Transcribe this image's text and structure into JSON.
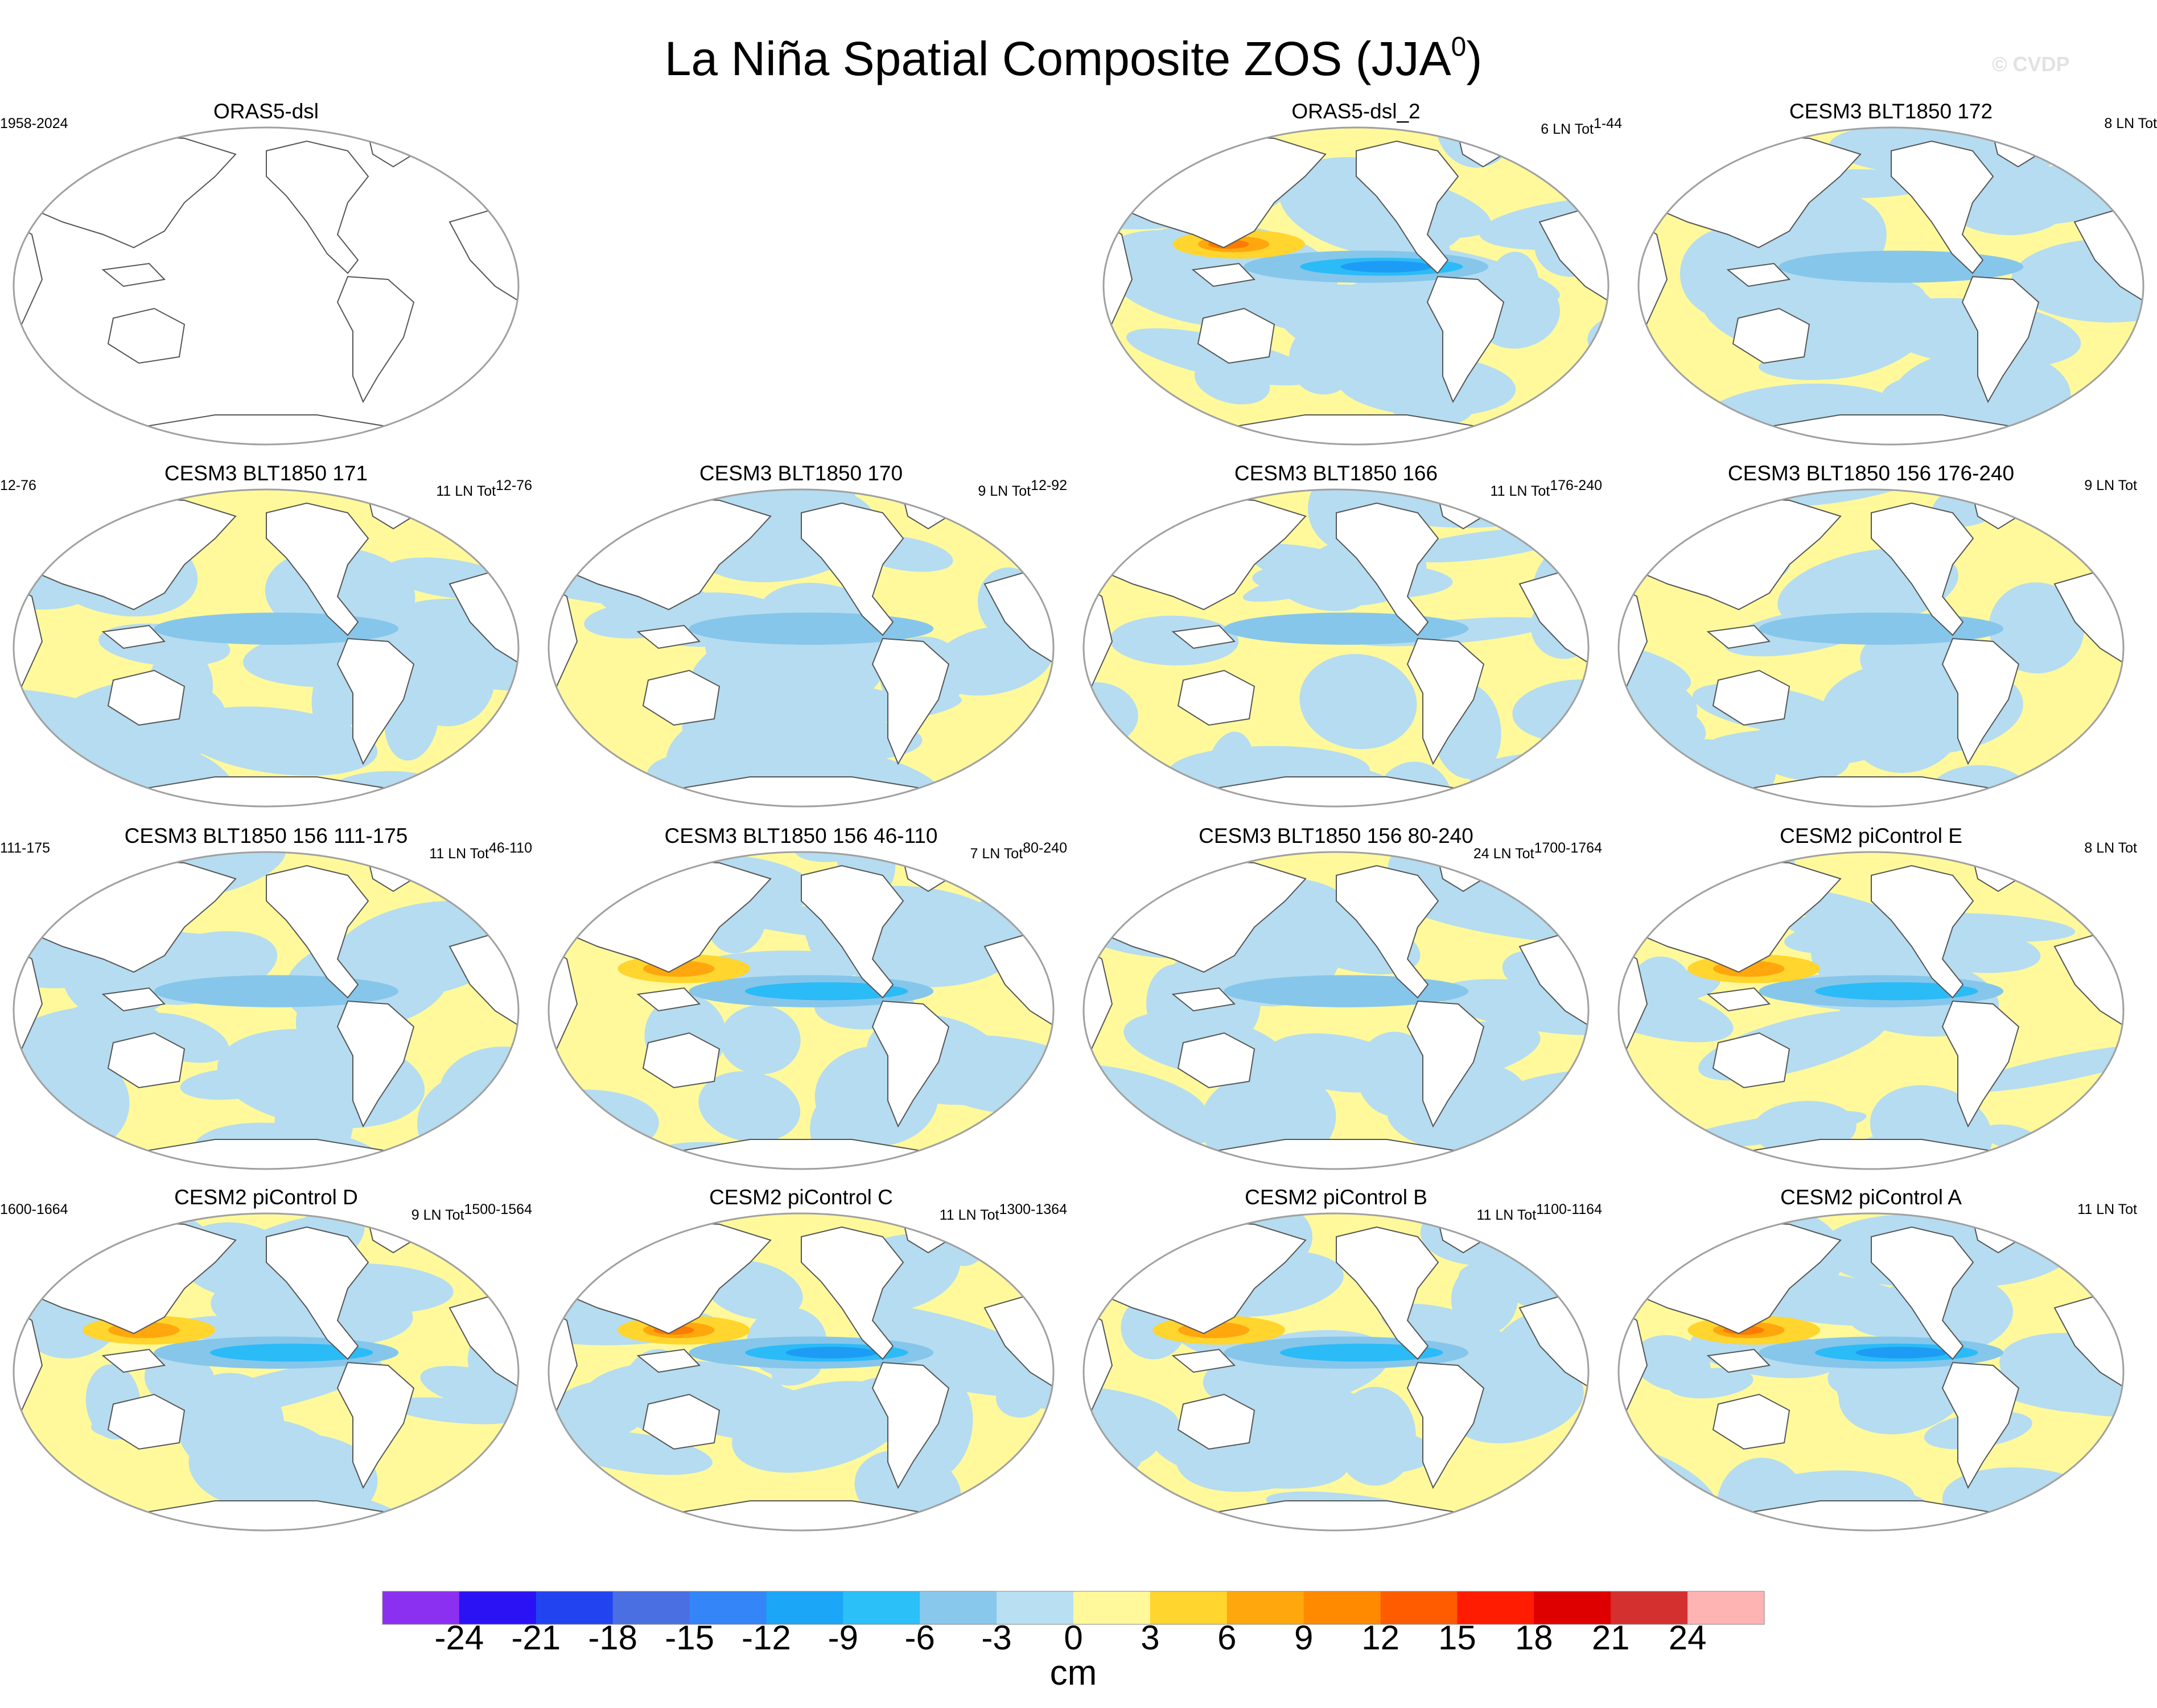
{
  "title": {
    "main": "La Niña Spatial Composite ZOS (JJA",
    "sup": "0",
    "close": ")"
  },
  "watermark": "© CVDP",
  "colors": {
    "land": "#ffffff",
    "coast": "#555555",
    "ocean_default": "#fff99c",
    "warm1": "#ffd52e",
    "warm2": "#ffa70c",
    "warm3": "#ff7a00",
    "warm4": "#ff4a00",
    "cool1": "#b5dcf0",
    "cool2": "#86c6ea",
    "cool3": "#2bbbf7",
    "cool4": "#1d9cf5"
  },
  "panels": [
    {
      "id": "orasdsl",
      "title": "ORAS5-dsl",
      "left": "1958-2024",
      "right_pre": "",
      "right_sup": "",
      "empty": true,
      "strength": 0
    },
    {
      "id": "orasdsl2",
      "title": "ORAS5-dsl_2",
      "left": "",
      "right_pre": "6 LN Tot",
      "right_sup": "1-44",
      "empty": false,
      "strength": 3
    },
    {
      "id": "blt172",
      "title": "CESM3 BLT1850 172",
      "left": "",
      "right_pre": "8 LN Tot",
      "right_sup": "",
      "empty": false,
      "strength": 1
    },
    {
      "id": "blt171",
      "title": "CESM3 BLT1850 171",
      "left": "12-76",
      "right_pre": "11 LN Tot",
      "right_sup": "12-76",
      "empty": false,
      "strength": 1
    },
    {
      "id": "blt170",
      "title": "CESM3 BLT1850 170",
      "left": "",
      "right_pre": "9 LN Tot",
      "right_sup": "12-92",
      "empty": false,
      "strength": 1
    },
    {
      "id": "blt166",
      "title": "CESM3 BLT1850 166",
      "left": "",
      "right_pre": "11 LN Tot",
      "right_sup": "176-240",
      "empty": false,
      "strength": 1
    },
    {
      "id": "blt156a",
      "title": "CESM3 BLT1850 156 176-240",
      "left": "",
      "right_pre": "9 LN Tot",
      "right_sup": "",
      "empty": false,
      "strength": 1
    },
    {
      "id": "blt156b",
      "title": "CESM3 BLT1850 156 111-175",
      "left": "111-175",
      "right_pre": "11 LN Tot",
      "right_sup": "46-110",
      "empty": false,
      "strength": 1
    },
    {
      "id": "blt156c",
      "title": "CESM3 BLT1850 156 46-110",
      "left": "",
      "right_pre": "7 LN Tot",
      "right_sup": "80-240",
      "empty": false,
      "strength": 2
    },
    {
      "id": "blt156d",
      "title": "CESM3 BLT1850 156 80-240",
      "left": "",
      "right_pre": "24 LN Tot",
      "right_sup": "1700-1764",
      "empty": false,
      "strength": 1
    },
    {
      "id": "picE",
      "title": "CESM2 piControl E",
      "left": "",
      "right_pre": "8 LN Tot",
      "right_sup": "",
      "empty": false,
      "strength": 2
    },
    {
      "id": "picD",
      "title": "CESM2 piControl D",
      "left": "1600-1664",
      "right_pre": "9 LN Tot",
      "right_sup": "1500-1564",
      "empty": false,
      "strength": 2
    },
    {
      "id": "picC",
      "title": "CESM2 piControl C",
      "left": "",
      "right_pre": "11 LN Tot",
      "right_sup": "1300-1364",
      "empty": false,
      "strength": 3
    },
    {
      "id": "picB",
      "title": "CESM2 piControl B",
      "left": "",
      "right_pre": "11 LN Tot",
      "right_sup": "1100-1164",
      "empty": false,
      "strength": 2
    },
    {
      "id": "picA",
      "title": "CESM2 piControl A",
      "left": "",
      "right_pre": "11 LN Tot",
      "right_sup": "",
      "empty": false,
      "strength": 3
    }
  ],
  "colorbar": {
    "levels": [
      -24,
      -21,
      -18,
      -15,
      -12,
      -9,
      -6,
      -3,
      0,
      3,
      6,
      9,
      12,
      15,
      18,
      21,
      24
    ],
    "colors": [
      "#8b2ff0",
      "#2a12f5",
      "#2244f0",
      "#4a6fe3",
      "#3385f8",
      "#1ca6f7",
      "#2bc0f7",
      "#88c8ec",
      "#b9dff2",
      "#fff99c",
      "#ffd52e",
      "#ffa70c",
      "#ff8a00",
      "#ff5c00",
      "#ff1c00",
      "#de0000",
      "#d43030",
      "#ffb4b4"
    ],
    "units": "cm"
  }
}
